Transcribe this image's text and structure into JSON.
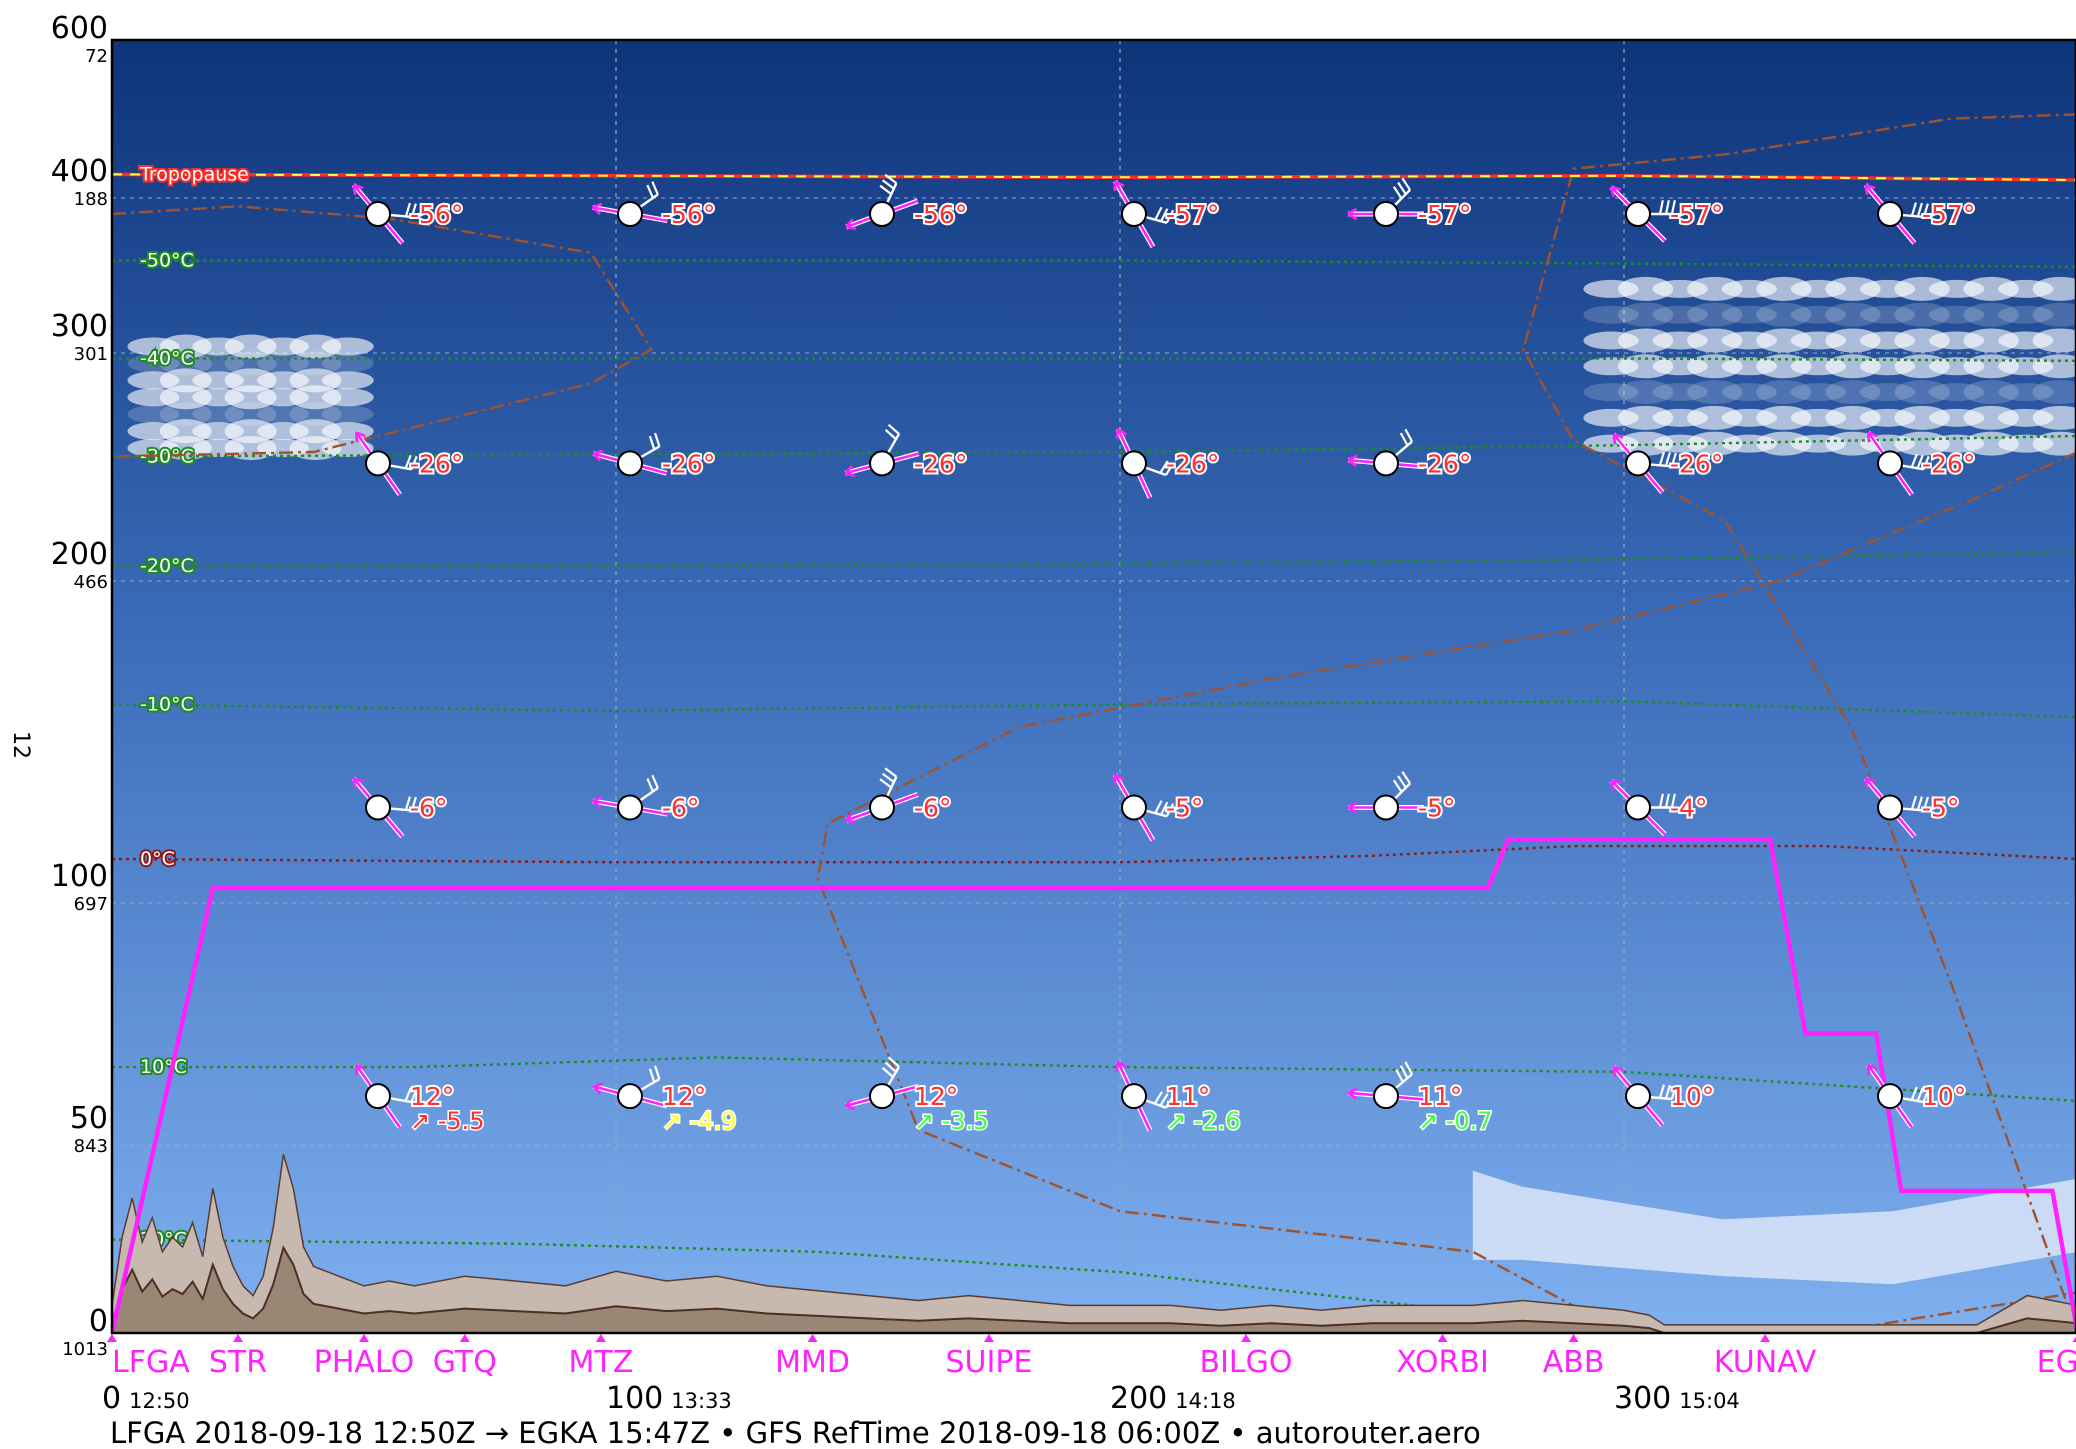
{
  "chart_data": {
    "type": "line",
    "title": "",
    "side_label": "12",
    "footer": "LFGA 2018-09-18 12:50Z → EGKA 15:47Z • GFS RefTime 2018-09-18 06:00Z • autorouter.aero",
    "y_axis": {
      "unit": "FL",
      "ticks": [
        {
          "fl": 600,
          "pressure": "72"
        },
        {
          "fl": 400,
          "pressure": "188"
        },
        {
          "fl": 300,
          "pressure": "301"
        },
        {
          "fl": 200,
          "pressure": "466"
        },
        {
          "fl": 100,
          "pressure": "697"
        },
        {
          "fl": 50,
          "pressure": "843"
        },
        {
          "fl": 0,
          "pressure": "1013"
        }
      ]
    },
    "x_axis": {
      "unit": "NM",
      "xlim": [
        0,
        390
      ],
      "ticks": [
        {
          "nm": 0,
          "label": "0",
          "time": "12:50"
        },
        {
          "nm": 100,
          "label": "100",
          "time": "13:33"
        },
        {
          "nm": 200,
          "label": "200",
          "time": "14:18"
        },
        {
          "nm": 300,
          "label": "300",
          "time": "15:04"
        }
      ]
    },
    "waypoints": [
      {
        "name": "LFGA",
        "nm": 0
      },
      {
        "name": "STR",
        "nm": 25
      },
      {
        "name": "PHALO",
        "nm": 50
      },
      {
        "name": "GTQ",
        "nm": 70
      },
      {
        "name": "MTZ",
        "nm": 97
      },
      {
        "name": "MMD",
        "nm": 139
      },
      {
        "name": "SUIPE",
        "nm": 174
      },
      {
        "name": "BILGO",
        "nm": 225
      },
      {
        "name": "XORBI",
        "nm": 264
      },
      {
        "name": "ABB",
        "nm": 290
      },
      {
        "name": "KUNAV",
        "nm": 328
      },
      {
        "name": "EGKA",
        "nm": 390
      }
    ],
    "tropopause_label": "Tropopause",
    "tropopause": {
      "x": [
        0,
        100,
        200,
        300,
        390
      ],
      "fl": [
        412,
        410,
        408,
        410,
        404
      ]
    },
    "route_profile": {
      "name": "route",
      "color": "#ff22ff",
      "x": [
        0,
        20,
        273,
        277,
        329,
        336,
        350,
        355,
        361,
        376,
        385,
        390
      ],
      "fl": [
        0,
        100,
        100,
        115,
        115,
        70,
        70,
        35,
        35,
        35,
        35,
        0
      ]
    },
    "isotherms": [
      {
        "label": "-50°C",
        "color": "#1f8c1f",
        "x": [
          0,
          100,
          200,
          300,
          390
        ],
        "fl": [
          350,
          350,
          350,
          348,
          346
        ]
      },
      {
        "label": "-40°C",
        "color": "#1f8c1f",
        "x": [
          0,
          100,
          200,
          300,
          390
        ],
        "fl": [
          291,
          291,
          291,
          291,
          290
        ]
      },
      {
        "label": "-30°C",
        "color": "#1f8c1f",
        "x": [
          0,
          100,
          200,
          300,
          390
        ],
        "fl": [
          248,
          249,
          250,
          253,
          257
        ]
      },
      {
        "label": "-20°C",
        "color": "#1f8c1f",
        "x": [
          0,
          100,
          200,
          300,
          390
        ],
        "fl": [
          200,
          200,
          201,
          203,
          206
        ]
      },
      {
        "label": "-10°C",
        "color": "#1f8c1f",
        "x": [
          0,
          100,
          200,
          300,
          390
        ],
        "fl": [
          157,
          155,
          157,
          158,
          153
        ]
      },
      {
        "label": "0°C",
        "color": "#8b1a1a",
        "x": [
          0,
          100,
          200,
          250,
          290,
          340,
          390
        ],
        "fl": [
          109,
          108,
          108,
          110,
          113,
          113,
          109
        ]
      },
      {
        "label": "10°C",
        "color": "#1f8c1f",
        "x": [
          0,
          60,
          120,
          200,
          300,
          390
        ],
        "fl": [
          63,
          63,
          65,
          63,
          62,
          56
        ]
      },
      {
        "label": "20°C",
        "color": "#1f8c1f",
        "x": [
          0,
          80,
          140,
          200,
          250,
          290,
          310,
          390
        ],
        "fl": [
          23,
          22,
          20,
          15,
          8,
          2,
          0,
          0
        ]
      }
    ],
    "clouds": [
      {
        "x0": 5,
        "x1": 50,
        "fl0": 248,
        "fl1": 300,
        "type": "high"
      },
      {
        "x0": 294,
        "x1": 390,
        "fl0": 248,
        "fl1": 340,
        "type": "high"
      },
      {
        "x0": 270,
        "x1": 390,
        "fl0": 12,
        "fl1": 38,
        "type": "band"
      }
    ],
    "dew_lines": [
      {
        "x": [
          0,
          25,
          55,
          95,
          107,
          95,
          40,
          0
        ],
        "fl": [
          380,
          385,
          377,
          355,
          295,
          280,
          250,
          248
        ]
      },
      {
        "x": [
          390,
          365,
          320,
          290,
          280,
          290,
          320,
          345,
          365,
          390
        ],
        "fl": [
          496,
          490,
          440,
          420,
          295,
          255,
          220,
          150,
          80,
          0
        ]
      },
      {
        "x": [
          390,
          370,
          330,
          290,
          230,
          180,
          142,
          140,
          160,
          200,
          270,
          300,
          325,
          340,
          390
        ],
        "fl": [
          250,
          230,
          195,
          180,
          165,
          150,
          120,
          103,
          50,
          30,
          20,
          0,
          0,
          0,
          10
        ]
      }
    ],
    "wind_levels": [
      {
        "fl": 380,
        "temps": [
          "-56°",
          "-56°",
          "-56°",
          "-57°",
          "-57°",
          "-57°",
          "-57°"
        ]
      },
      {
        "fl": 245,
        "temps": [
          "-26°",
          "-26°",
          "-26°",
          "-26°",
          "-26°",
          "-26°",
          "-26°"
        ]
      },
      {
        "fl": 125,
        "temps": [
          "-6°",
          "-6°",
          "-6°",
          "-5°",
          "-5°",
          "-4°",
          "-5°"
        ]
      },
      {
        "fl": 57,
        "temps": [
          "12°",
          "12°",
          "12°",
          "11°",
          "11°",
          "10°",
          "10°"
        ]
      }
    ],
    "wind_x": [
      50,
      100,
      150,
      200,
      250,
      300,
      350
    ],
    "wind_dirs": [
      [
        320,
        280,
        250,
        330,
        270,
        315,
        320
      ]
    ],
    "wind_feathers": [
      [
        2,
        2,
        3,
        3,
        3,
        3,
        3
      ],
      [
        2,
        2,
        2,
        2,
        2,
        3,
        3
      ],
      [
        2,
        2,
        3,
        3,
        3,
        3,
        3
      ],
      [
        2,
        2,
        3,
        3,
        3,
        3,
        3
      ]
    ],
    "stability": [
      {
        "x": 50,
        "label": "↗ -5.5",
        "color": "#ff3030"
      },
      {
        "x": 100,
        "label": "↗ -4.9",
        "color": "#ffff33"
      },
      {
        "x": 150,
        "label": "↗ -3.5",
        "color": "#44ff44"
      },
      {
        "x": 200,
        "label": "↗ -2.6",
        "color": "#44ff44"
      },
      {
        "x": 250,
        "label": "↗ -0.7",
        "color": "#44ff44"
      }
    ],
    "terrain": {
      "x": [
        0,
        2,
        4,
        6,
        8,
        10,
        12,
        14,
        16,
        18,
        20,
        22,
        24,
        26,
        28,
        30,
        32,
        34,
        36,
        38,
        40,
        45,
        50,
        55,
        60,
        70,
        80,
        90,
        100,
        110,
        120,
        130,
        140,
        150,
        160,
        170,
        180,
        190,
        200,
        210,
        220,
        230,
        240,
        250,
        260,
        270,
        280,
        290,
        300,
        305,
        308,
        320,
        330,
        340,
        350,
        360,
        370,
        375,
        380,
        385,
        390
      ],
      "fl": [
        4,
        18,
        26,
        17,
        22,
        15,
        18,
        16,
        21,
        14,
        28,
        18,
        12,
        8,
        6,
        10,
        20,
        35,
        28,
        16,
        12,
        10,
        8,
        9,
        8,
        10,
        9,
        8,
        11,
        9,
        10,
        8,
        7,
        6,
        5,
        6,
        5,
        4,
        4,
        4,
        3,
        4,
        3,
        4,
        4,
        4,
        5,
        4,
        3,
        2,
        0,
        0,
        0,
        0,
        0,
        0,
        0,
        3,
        6,
        5,
        4
      ]
    }
  }
}
